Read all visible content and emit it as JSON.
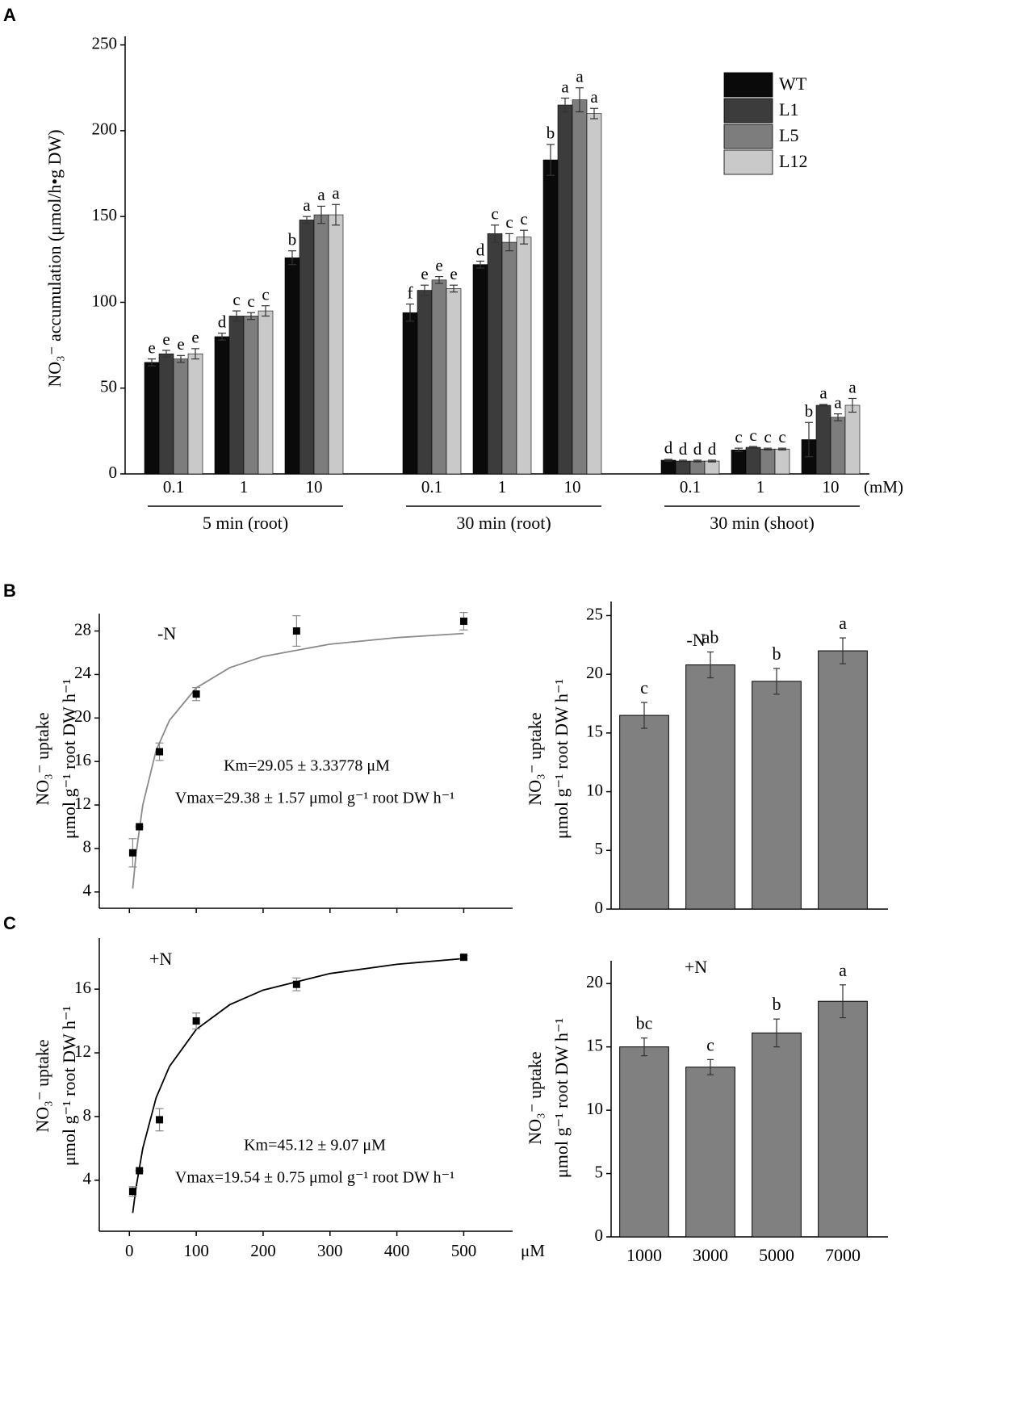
{
  "panels": [
    "A",
    "B",
    "C"
  ],
  "chart_data": [
    {
      "type": "grouped_bar",
      "ylabel": "NO₃⁻ accumulation (μmol/h•g DW)",
      "ylim": [
        0,
        255
      ],
      "yticks": [
        0,
        50,
        100,
        150,
        200,
        250
      ],
      "categories": [
        "0.1",
        "1",
        "10",
        "0.1",
        "1",
        "10",
        "0.1",
        "1",
        "10"
      ],
      "groups": [
        "5 min (root)",
        "30 min (root)",
        "30 min (shoot)"
      ],
      "unit": "(mM)",
      "legend": "upper right",
      "series": [
        {
          "name": "WT",
          "color": "#0a0a0a",
          "values": [
            65,
            80,
            126,
            94,
            122,
            183,
            8,
            14,
            20
          ],
          "errors": [
            2,
            2,
            4,
            5,
            2,
            9,
            0.5,
            1,
            10
          ],
          "letters": [
            "e",
            "d",
            "b",
            "f",
            "d",
            "b",
            "d",
            "c",
            "b"
          ]
        },
        {
          "name": "L1",
          "color": "#3c3c3c",
          "values": [
            70,
            92,
            148,
            107,
            140,
            215,
            7.5,
            15.5,
            40
          ],
          "errors": [
            2,
            3,
            2,
            3,
            5,
            4,
            0.5,
            0.5,
            0.5
          ],
          "letters": [
            "e",
            "c",
            "a",
            "e",
            "c",
            "a",
            "d",
            "c",
            "a"
          ]
        },
        {
          "name": "L5",
          "color": "#7d7d7d",
          "values": [
            67,
            92,
            151,
            113,
            135,
            218,
            7.5,
            14.5,
            33
          ],
          "errors": [
            2,
            2,
            5,
            2,
            5,
            7,
            0.5,
            0.5,
            2
          ],
          "letters": [
            "e",
            "c",
            "a",
            "e",
            "c",
            "a",
            "d",
            "c",
            "a"
          ]
        },
        {
          "name": "L12",
          "color": "#c9c9c9",
          "values": [
            70,
            95,
            151,
            108,
            138,
            210,
            7.5,
            14.5,
            40
          ],
          "errors": [
            3,
            3,
            6,
            2,
            4,
            3,
            0.5,
            0.5,
            4
          ],
          "letters": [
            "e",
            "c",
            "a",
            "e",
            "c",
            "a",
            "d",
            "c",
            "a"
          ]
        }
      ]
    },
    {
      "type": "scatter",
      "title": "-N",
      "ylabel": [
        "NO₃⁻ uptake",
        "μmol g⁻¹ root DW h⁻¹"
      ],
      "annotations": [
        "Km=29.05 ± 3.33778 μM",
        "Vmax=29.38 ± 1.57 μmol g⁻¹ root DW h⁻¹"
      ],
      "x": [
        5,
        15,
        45,
        100,
        250,
        500
      ],
      "y": [
        7.6,
        10,
        16.9,
        22.2,
        28,
        28.9
      ],
      "errors": [
        1.3,
        0,
        0.8,
        0.6,
        1.4,
        0.8
      ],
      "color": "#000000",
      "fit": {
        "x": [
          5,
          10,
          20,
          40,
          60,
          100,
          150,
          200,
          300,
          400,
          500
        ],
        "y": [
          4.31,
          7.52,
          11.98,
          17.02,
          19.79,
          22.77,
          24.62,
          25.66,
          26.79,
          27.39,
          27.77
        ],
        "color": "#8a8a8a"
      },
      "xlim": [
        -45,
        555
      ],
      "ylim": [
        2.5,
        29.6
      ],
      "xticks": [
        0,
        100,
        200,
        300,
        400,
        500
      ],
      "yticks": [
        4,
        8,
        12,
        16,
        20,
        24,
        28
      ],
      "show_xtick_labels": false
    },
    {
      "type": "bar",
      "title": "-N",
      "ylabel": [
        "NO₃⁻ uptake",
        "μmol g⁻¹ root DW h⁻¹"
      ],
      "categories": [
        null,
        null,
        null,
        null
      ],
      "values": [
        16.5,
        20.8,
        19.4,
        22
      ],
      "errors": [
        1.1,
        1.1,
        1.1,
        1.1
      ],
      "letters": [
        "c",
        "ab",
        "b",
        "a"
      ],
      "color": "#808080",
      "ylim": [
        0,
        26.2
      ],
      "yticks": [
        0,
        5,
        10,
        15,
        20,
        25
      ]
    },
    {
      "type": "scatter",
      "title": "+N",
      "ylabel": [
        "NO₃⁻ uptake",
        "μmol g⁻¹ root DW h⁻¹"
      ],
      "annotations": [
        "Km=45.12 ± 9.07 μM",
        "Vmax=19.54 ± 0.75 μmol g⁻¹ root DW h⁻¹"
      ],
      "x": [
        5,
        15,
        45,
        100,
        250,
        500
      ],
      "y": [
        3.3,
        4.6,
        7.8,
        14,
        16.3,
        18
      ],
      "errors": [
        0.3,
        0,
        0.7,
        0.5,
        0.4,
        0.1
      ],
      "color": "#000000",
      "fit": {
        "x": [
          5,
          10,
          20,
          40,
          60,
          100,
          150,
          200,
          300,
          400,
          500
        ],
        "y": [
          1.95,
          3.55,
          6.0,
          9.18,
          11.15,
          13.47,
          15.02,
          15.94,
          16.98,
          17.56,
          17.92
        ],
        "color": "#000000"
      },
      "xlim": [
        -45,
        555
      ],
      "ylim": [
        0.8,
        19.2
      ],
      "xticks": [
        0,
        100,
        200,
        300,
        400,
        500
      ],
      "yticks": [
        4,
        8,
        12,
        16
      ],
      "show_xtick_labels": true,
      "xunit": "μM"
    },
    {
      "type": "bar",
      "title": "+N",
      "ylabel": [
        "NO₃⁻ uptake",
        "μmol g⁻¹ root DW h⁻¹"
      ],
      "categories": [
        "1000",
        "3000",
        "5000",
        "7000"
      ],
      "values": [
        15,
        13.4,
        16.1,
        18.6
      ],
      "errors": [
        0.7,
        0.6,
        1.1,
        1.3
      ],
      "letters": [
        "bc",
        "c",
        "b",
        "a"
      ],
      "color": "#808080",
      "ylim": [
        0,
        21.8
      ],
      "yticks": [
        0,
        5,
        10,
        15,
        20
      ]
    }
  ]
}
